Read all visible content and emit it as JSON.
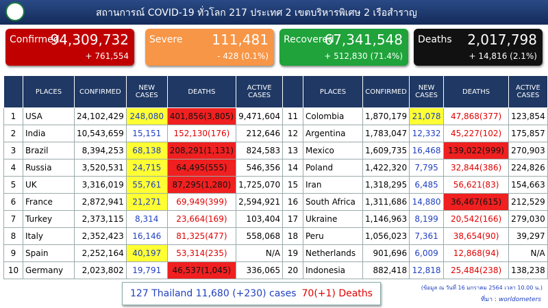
{
  "header": {
    "title": "สถานการณ์ COVID-19 ทั่วโลก 217 ประเทศ 2 เขตบริหารพิเศษ 2 เรือสำราญ"
  },
  "cards": [
    {
      "label": "Confirmed",
      "value": "94,309,732",
      "change": "+ 761,554",
      "color": "#c00000"
    },
    {
      "label": "Severe",
      "value": "111,481",
      "change": "- 428 (0.1%)",
      "color": "#f79646"
    },
    {
      "label": "Recovered",
      "value": "67,341,548",
      "change": "+ 512,830 (71.4%)",
      "color": "#1fa33a"
    },
    {
      "label": "Deaths",
      "value": "2,017,798",
      "change": "+ 14,816 (2.1%)",
      "color": "#111111"
    }
  ],
  "tables": [
    {
      "columns": [
        "PLACES",
        "CONFIRMED",
        "NEW CASES",
        "DEATHS",
        "ACTIVE CASES"
      ],
      "rows": [
        [
          "1",
          "USA",
          "24,102,429",
          "248,080",
          "401,856(3,805)",
          "9,471,604"
        ],
        [
          "2",
          "India",
          "10,543,659",
          "15,151",
          "152,130(176)",
          "212,646"
        ],
        [
          "3",
          "Brazil",
          "8,394,253",
          "68,138",
          "208,291(1,131)",
          "824,583"
        ],
        [
          "4",
          "Russia",
          "3,520,531",
          "24,715",
          "64,495(555)",
          "546,356"
        ],
        [
          "5",
          "UK",
          "3,316,019",
          "55,761",
          "87,295(1,280)",
          "1,725,070"
        ],
        [
          "6",
          "France",
          "2,872,941",
          "21,271",
          "69,949(399)",
          "2,594,921"
        ],
        [
          "7",
          "Turkey",
          "2,373,115",
          "8,314",
          "23,664(169)",
          "103,404"
        ],
        [
          "8",
          "Italy",
          "2,352,423",
          "16,146",
          "81,325(477)",
          "558,068"
        ],
        [
          "9",
          "Spain",
          "2,252,164",
          "40,197",
          "53,314(235)",
          "N/A"
        ],
        [
          "10",
          "Germany",
          "2,023,802",
          "19,791",
          "46,537(1,045)",
          "336,065"
        ]
      ],
      "yellow_new_rows": [
        0,
        2,
        3,
        4,
        5,
        8
      ],
      "red_death_rows": [
        0,
        2,
        3,
        4,
        9
      ]
    },
    {
      "columns": [
        "PLACES",
        "CONFIRMED",
        "NEW CASES",
        "DEATHS",
        "ACTIVE CASES"
      ],
      "rows": [
        [
          "11",
          "Colombia",
          "1,870,179",
          "21,078",
          "47,868(377)",
          "123,854"
        ],
        [
          "12",
          "Argentina",
          "1,783,047",
          "12,332",
          "45,227(102)",
          "175,857"
        ],
        [
          "13",
          "Mexico",
          "1,609,735",
          "16,468",
          "139,022(999)",
          "270,903"
        ],
        [
          "14",
          "Poland",
          "1,422,320",
          "7,795",
          "32,844(386)",
          "224,826"
        ],
        [
          "15",
          "Iran",
          "1,318,295",
          "6,485",
          "56,621(83)",
          "154,663"
        ],
        [
          "16",
          "South Africa",
          "1,311,686",
          "14,880",
          "36,467(615)",
          "212,529"
        ],
        [
          "17",
          "Ukraine",
          "1,146,963",
          "8,199",
          "20,542(166)",
          "279,030"
        ],
        [
          "18",
          "Peru",
          "1,056,023",
          "7,361",
          "38,654(90)",
          "39,297"
        ],
        [
          "19",
          "Netherlands",
          "901,696",
          "6,009",
          "12,868(94)",
          "N/A"
        ],
        [
          "20",
          "Indonesia",
          "882,418",
          "12,818",
          "25,484(238)",
          "138,238"
        ]
      ],
      "yellow_new_rows": [
        0
      ],
      "red_death_rows": [
        2,
        5
      ]
    }
  ],
  "footer": {
    "thailand_cases": "127 Thailand 11,680 (+230) cases",
    "thailand_deaths": "70(+1) Deaths",
    "date_note": "(ข้อมูล ณ วันที่ 16 มกราคม 2564 เวลา 10.00 น.)",
    "source_label": "ที่มา :",
    "source": "worldometers"
  }
}
